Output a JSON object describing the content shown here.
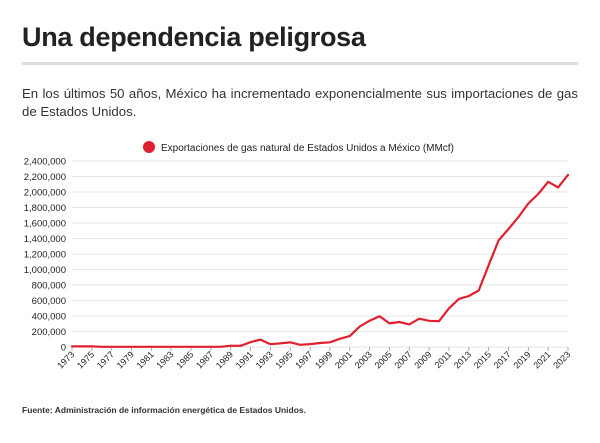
{
  "header": {
    "title": "Una dependencia peligrosa",
    "subtitle": "En los últimos 50 años, México ha incrementado exponencialmente sus importaciones de gas de Estados Unidos."
  },
  "footer": {
    "source": "Fuente: Administración de información energética de Estados Unidos."
  },
  "colors": {
    "series": "#e0202e",
    "grid": "#e6e6e6",
    "text": "#222222"
  },
  "chart_data": {
    "type": "line",
    "title": "",
    "xlabel": "",
    "ylabel": "",
    "legend_position": "top",
    "grid": true,
    "ylim": [
      0,
      2400000
    ],
    "yticks": [
      0,
      200000,
      400000,
      600000,
      800000,
      1000000,
      1200000,
      1400000,
      1600000,
      1800000,
      2000000,
      2200000,
      2400000
    ],
    "ytick_labels": [
      "0",
      "200,000",
      "400,000",
      "600,000",
      "800,000",
      "1,000,000",
      "1,200,000",
      "1,400,000",
      "1,600,000",
      "1,800,000",
      "2,000,000",
      "2,200,000",
      "2,400,000"
    ],
    "xlim": [
      1973,
      2023
    ],
    "xticks": [
      1973,
      1975,
      1977,
      1979,
      1981,
      1983,
      1985,
      1987,
      1989,
      1991,
      1993,
      1995,
      1997,
      1999,
      2001,
      2003,
      2005,
      2007,
      2009,
      2011,
      2013,
      2015,
      2017,
      2019,
      2021,
      2023
    ],
    "series": [
      {
        "name": "Exportaciones de gas natural de Estados Unidos a México (MMcf)",
        "x": [
          1973,
          1974,
          1975,
          1976,
          1977,
          1978,
          1979,
          1980,
          1981,
          1982,
          1983,
          1984,
          1985,
          1986,
          1987,
          1988,
          1989,
          1990,
          1991,
          1992,
          1993,
          1994,
          1995,
          1996,
          1997,
          1998,
          1999,
          2000,
          2001,
          2002,
          2003,
          2004,
          2005,
          2006,
          2007,
          2008,
          2009,
          2010,
          2011,
          2012,
          2013,
          2014,
          2015,
          2016,
          2017,
          2018,
          2019,
          2020,
          2021,
          2022,
          2023
        ],
        "values": [
          8000,
          8000,
          8000,
          3000,
          2000,
          2000,
          2000,
          2000,
          2000,
          2000,
          2000,
          2000,
          2000,
          2000,
          2000,
          2000,
          17000,
          16000,
          63000,
          96000,
          36000,
          47000,
          61000,
          28000,
          38000,
          51000,
          61000,
          106000,
          141000,
          263000,
          340000,
          397000,
          305000,
          322000,
          292000,
          365000,
          338000,
          333000,
          499000,
          620000,
          658000,
          729000,
          1054000,
          1376000,
          1522000,
          1676000,
          1851000,
          1974000,
          2132000,
          2060000,
          2220000
        ]
      }
    ]
  }
}
